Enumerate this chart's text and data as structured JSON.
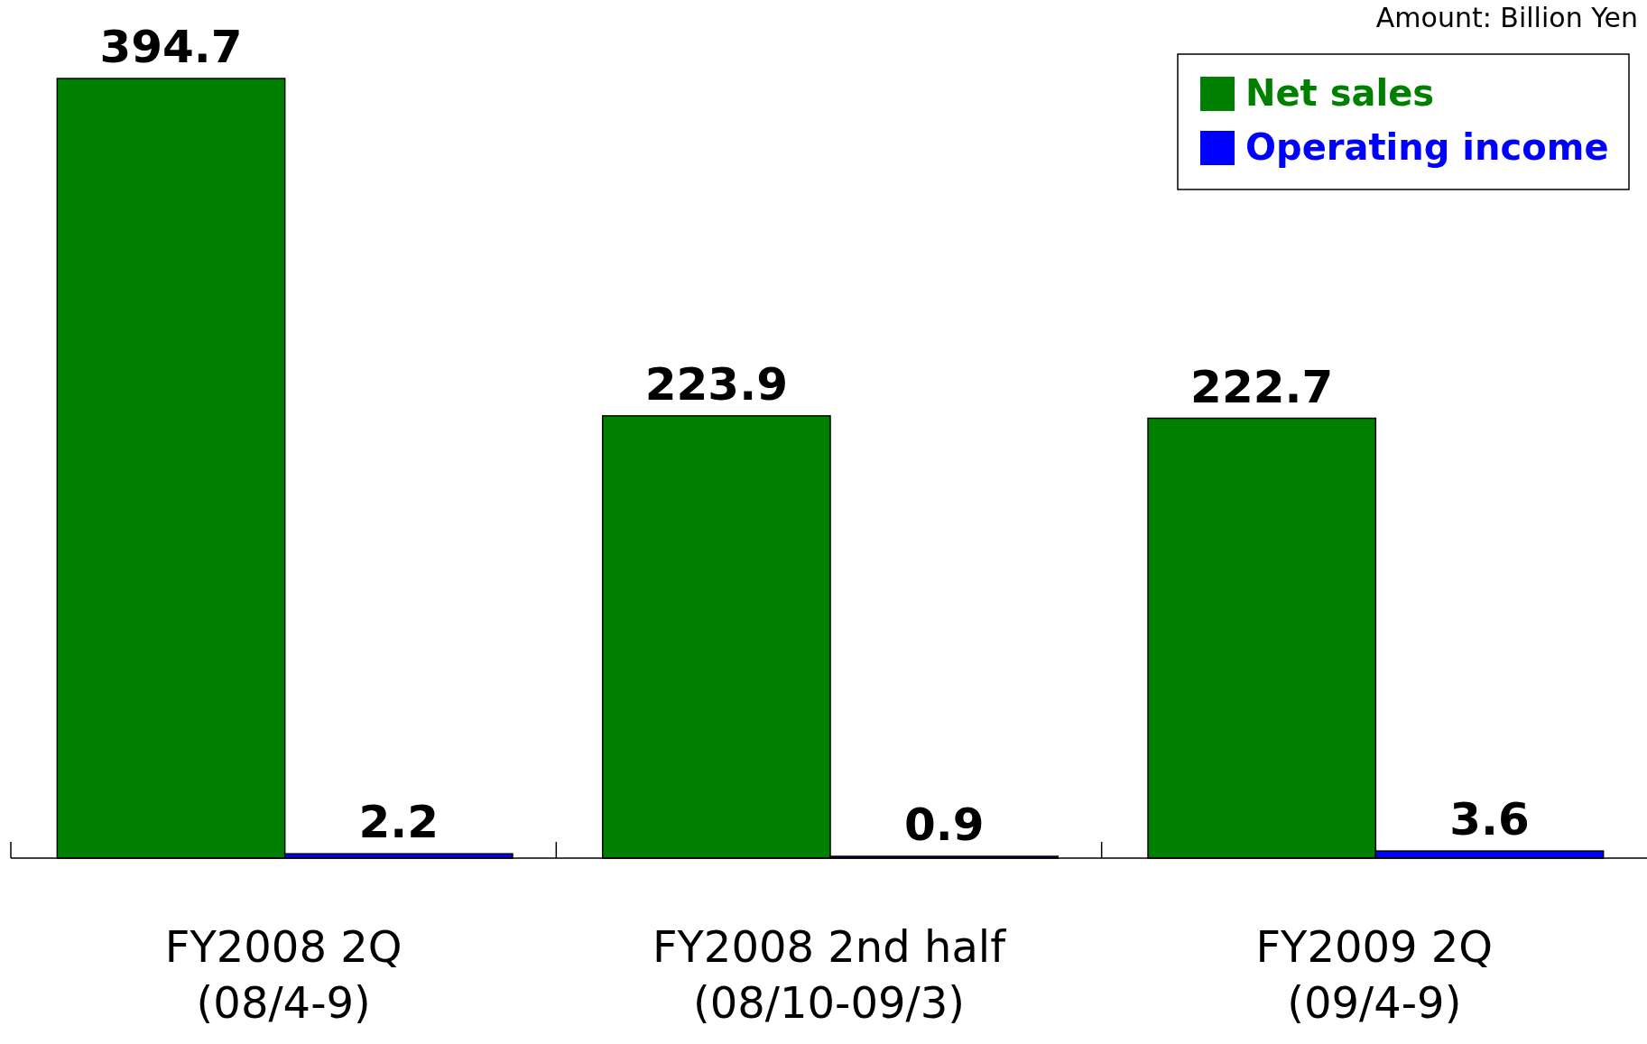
{
  "chart_data": {
    "type": "bar",
    "categories": [
      "FY2008 2Q\n(08/4-9)",
      "FY2008 2nd half\n(08/10-09/3)",
      "FY2009 2Q\n(09/4-9)"
    ],
    "series": [
      {
        "name": "Net sales",
        "color": "#008000",
        "values": [
          394.7,
          223.9,
          222.7
        ]
      },
      {
        "name": "Operating income",
        "color": "#0000ff",
        "values": [
          2.2,
          0.9,
          3.6
        ]
      }
    ],
    "data_labels": true,
    "legend": "top right",
    "annotations": [
      "Amount: Billion Yen"
    ]
  }
}
